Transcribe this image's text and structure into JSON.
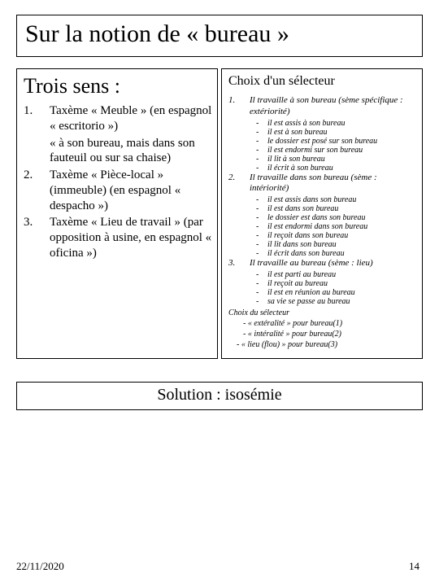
{
  "title": "Sur la notion de « bureau »",
  "left": {
    "heading": "Trois sens :",
    "items": [
      {
        "num": "1.",
        "text": "Taxème « Meuble » (en espagnol « escritorio »)",
        "sub": "« à son bureau, mais dans son fauteuil ou sur sa chaise)"
      },
      {
        "num": "2.",
        "text": "Taxème « Pièce-local » (immeuble) (en espagnol « despacho »)"
      },
      {
        "num": "3.",
        "text": "Taxème « Lieu de travail » (par opposition à usine, en espagnol « oficina »)"
      }
    ]
  },
  "right": {
    "heading": "Choix d'un sélecteur",
    "groups": [
      {
        "num": "1.",
        "text": "Il travaille à son bureau (sème spécifique : extériorité)",
        "bullets": [
          "il est assis à son bureau",
          "il est à son bureau",
          "le dossier est posé sur son bureau",
          "il est endormi sur son bureau",
          "il lit à son bureau",
          "il écrit à son bureau"
        ]
      },
      {
        "num": "2.",
        "text": "Il travaille dans son bureau (sème : intériorité)",
        "bullets": [
          "il est assis dans son bureau",
          "il est dans son bureau",
          "le dossier est dans son bureau",
          "il est endormi dans son bureau",
          "il reçoit dans son bureau",
          "il lit dans son bureau",
          "il écrit dans son bureau"
        ]
      },
      {
        "num": "3.",
        "text": "Il travaille au bureau (sème : lieu)",
        "bullets": [
          "il est parti au bureau",
          "il reçoit au bureau",
          "il est en réunion au bureau",
          "sa vie se passe au bureau"
        ]
      }
    ],
    "tail": {
      "l0": "Choix du sélecteur",
      "l1": "- « extéralité » pour bureau(1)",
      "l2": "- « intéralité » pour bureau(2)",
      "l3": "- « lieu (flou) » pour bureau(3)"
    }
  },
  "solution": "Solution : isosémie",
  "footer": {
    "date": "22/11/2020",
    "page": "14"
  }
}
